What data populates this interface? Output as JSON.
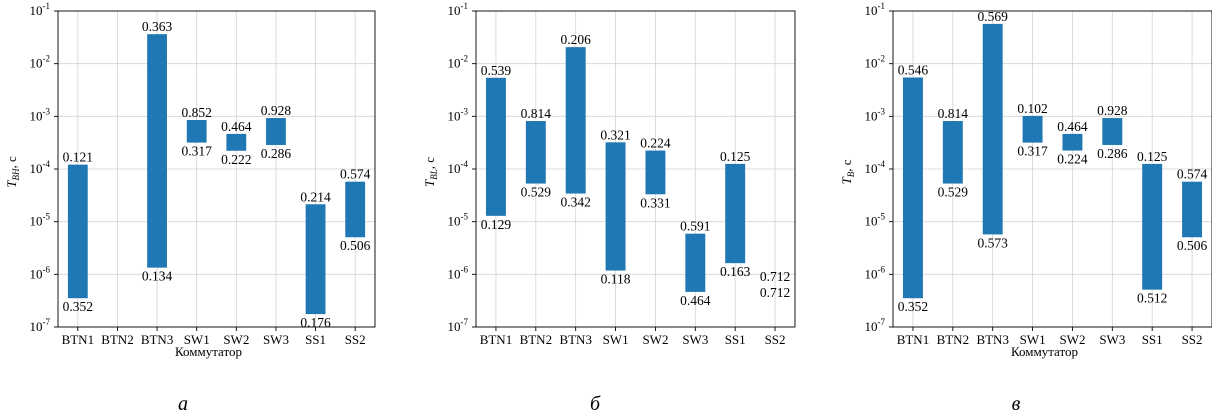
{
  "chart_data": [
    {
      "type": "bar",
      "panel_caption": "а",
      "ylabel_base": "T",
      "ylabel_sub": "BH",
      "ylabel_unit": ", с",
      "xlabel": "Коммутатор",
      "yscale": "log",
      "ylim": [
        1e-07,
        0.1
      ],
      "yticks": [
        {
          "exp": "-7",
          "v": 1e-07
        },
        {
          "exp": "-6",
          "v": 1e-06
        },
        {
          "exp": "-5",
          "v": 1e-05
        },
        {
          "exp": "-4",
          "v": 0.0001
        },
        {
          "exp": "-3",
          "v": 0.001
        },
        {
          "exp": "-2",
          "v": 0.01
        },
        {
          "exp": "-1",
          "v": 0.1
        }
      ],
      "categories": [
        "BTN1",
        "BTN2",
        "BTN3",
        "SW1",
        "SW2",
        "SW3",
        "SS1",
        "SS2"
      ],
      "bars": [
        {
          "low": 3.52e-07,
          "high": 0.000121,
          "low_label": "0.352",
          "high_label": "0.121"
        },
        null,
        {
          "low": 1.34e-06,
          "high": 0.0363,
          "low_label": "0.134",
          "high_label": "0.363"
        },
        {
          "low": 0.000317,
          "high": 0.000852,
          "low_label": "0.317",
          "high_label": "0.852"
        },
        {
          "low": 0.000222,
          "high": 0.000464,
          "low_label": "0.222",
          "high_label": "0.464"
        },
        {
          "low": 0.000286,
          "high": 0.000928,
          "low_label": "0.286",
          "high_label": "0.928"
        },
        {
          "low": 1.76e-07,
          "high": 2.14e-05,
          "low_label": "0.176",
          "high_label": "0.214"
        },
        {
          "low": 5.06e-06,
          "high": 5.74e-05,
          "low_label": "0.506",
          "high_label": "0.574"
        }
      ],
      "color": "#1f77b4",
      "grid": true
    },
    {
      "type": "bar",
      "panel_caption": "б",
      "ylabel_base": "T",
      "ylabel_sub": "BL",
      "ylabel_unit": ", с",
      "xlabel": "",
      "yscale": "log",
      "ylim": [
        1e-07,
        0.1
      ],
      "yticks": [
        {
          "exp": "-7",
          "v": 1e-07
        },
        {
          "exp": "-6",
          "v": 1e-06
        },
        {
          "exp": "-5",
          "v": 1e-05
        },
        {
          "exp": "-4",
          "v": 0.0001
        },
        {
          "exp": "-3",
          "v": 0.001
        },
        {
          "exp": "-2",
          "v": 0.01
        },
        {
          "exp": "-1",
          "v": 0.1
        }
      ],
      "categories": [
        "BTN1",
        "BTN2",
        "BTN3",
        "SW1",
        "SW2",
        "SW3",
        "SS1",
        "SS2"
      ],
      "bars": [
        {
          "low": 1.29e-05,
          "high": 0.00539,
          "low_label": "0.129",
          "high_label": "0.539"
        },
        {
          "low": 5.29e-05,
          "high": 0.000814,
          "low_label": "0.529",
          "high_label": "0.814"
        },
        {
          "low": 3.42e-05,
          "high": 0.0206,
          "low_label": "0.342",
          "high_label": "0.206"
        },
        {
          "low": 1.18e-06,
          "high": 0.000321,
          "low_label": "0.118",
          "high_label": "0.321"
        },
        {
          "low": 3.31e-05,
          "high": 0.000224,
          "low_label": "0.331",
          "high_label": "0.224"
        },
        {
          "low": 4.64e-07,
          "high": 5.91e-06,
          "low_label": "0.464",
          "high_label": "0.591"
        },
        {
          "low": 1.63e-06,
          "high": 0.000125,
          "low_label": "0.163",
          "high_label": "0.125"
        },
        {
          "low": 7.12e-07,
          "high": 7.12e-07,
          "low_label": "0.712",
          "high_label": "0.712"
        }
      ],
      "color": "#1f77b4",
      "grid": true
    },
    {
      "type": "bar",
      "panel_caption": "в",
      "ylabel_base": "T",
      "ylabel_sub": "B",
      "ylabel_unit": ", с",
      "xlabel": "Коммутатор",
      "yscale": "log",
      "ylim": [
        1e-07,
        0.1
      ],
      "yticks": [
        {
          "exp": "-7",
          "v": 1e-07
        },
        {
          "exp": "-6",
          "v": 1e-06
        },
        {
          "exp": "-5",
          "v": 1e-05
        },
        {
          "exp": "-4",
          "v": 0.0001
        },
        {
          "exp": "-3",
          "v": 0.001
        },
        {
          "exp": "-2",
          "v": 0.01
        },
        {
          "exp": "-1",
          "v": 0.1
        }
      ],
      "categories": [
        "BTN1",
        "BTN2",
        "BTN3",
        "SW1",
        "SW2",
        "SW3",
        "SS1",
        "SS2"
      ],
      "bars": [
        {
          "low": 3.52e-07,
          "high": 0.00546,
          "low_label": "0.352",
          "high_label": "0.546"
        },
        {
          "low": 5.29e-05,
          "high": 0.000814,
          "low_label": "0.529",
          "high_label": "0.814"
        },
        {
          "low": 5.73e-06,
          "high": 0.0569,
          "low_label": "0.573",
          "high_label": "0.569"
        },
        {
          "low": 0.000317,
          "high": 0.00102,
          "low_label": "0.317",
          "high_label": "0.102"
        },
        {
          "low": 0.000224,
          "high": 0.000464,
          "low_label": "0.224",
          "high_label": "0.464"
        },
        {
          "low": 0.000286,
          "high": 0.000928,
          "low_label": "0.286",
          "high_label": "0.928"
        },
        {
          "low": 5.12e-07,
          "high": 0.000125,
          "low_label": "0.512",
          "high_label": "0.125"
        },
        {
          "low": 5.06e-06,
          "high": 5.74e-05,
          "low_label": "0.506",
          "high_label": "0.574"
        }
      ],
      "color": "#1f77b4",
      "grid": true
    }
  ]
}
